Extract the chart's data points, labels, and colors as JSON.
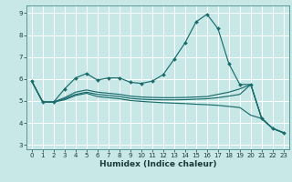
{
  "title": "",
  "xlabel": "Humidex (Indice chaleur)",
  "bg_color": "#c8e8e8",
  "grid_color": "#ffffff",
  "line_color": "#1a6b6b",
  "xlim": [
    -0.5,
    23.5
  ],
  "ylim": [
    2.8,
    9.35
  ],
  "xticks": [
    0,
    1,
    2,
    3,
    4,
    5,
    6,
    7,
    8,
    9,
    10,
    11,
    12,
    13,
    14,
    15,
    16,
    17,
    18,
    19,
    20,
    21,
    22,
    23
  ],
  "yticks": [
    3,
    4,
    5,
    6,
    7,
    8,
    9
  ],
  "main_y": [
    5.9,
    4.95,
    4.95,
    5.55,
    6.05,
    6.25,
    5.95,
    6.05,
    6.05,
    5.85,
    5.8,
    5.9,
    6.2,
    6.9,
    7.65,
    8.6,
    8.95,
    8.3,
    6.7,
    5.75,
    5.75,
    4.2,
    3.75,
    3.55
  ],
  "line2_y": [
    5.9,
    4.95,
    4.95,
    5.05,
    5.25,
    5.35,
    5.2,
    5.15,
    5.1,
    5.02,
    4.98,
    4.95,
    4.92,
    4.9,
    4.88,
    4.85,
    4.83,
    4.8,
    4.75,
    4.7,
    4.35,
    4.2,
    3.75,
    3.55
  ],
  "line3_y": [
    5.9,
    4.95,
    4.95,
    5.1,
    5.3,
    5.4,
    5.3,
    5.25,
    5.2,
    5.12,
    5.08,
    5.06,
    5.05,
    5.05,
    5.06,
    5.08,
    5.1,
    5.15,
    5.22,
    5.3,
    5.75,
    4.2,
    3.75,
    3.55
  ],
  "line4_y": [
    5.9,
    4.95,
    4.95,
    5.15,
    5.4,
    5.5,
    5.4,
    5.35,
    5.3,
    5.22,
    5.18,
    5.16,
    5.15,
    5.15,
    5.16,
    5.18,
    5.2,
    5.3,
    5.4,
    5.55,
    5.75,
    4.2,
    3.75,
    3.55
  ]
}
